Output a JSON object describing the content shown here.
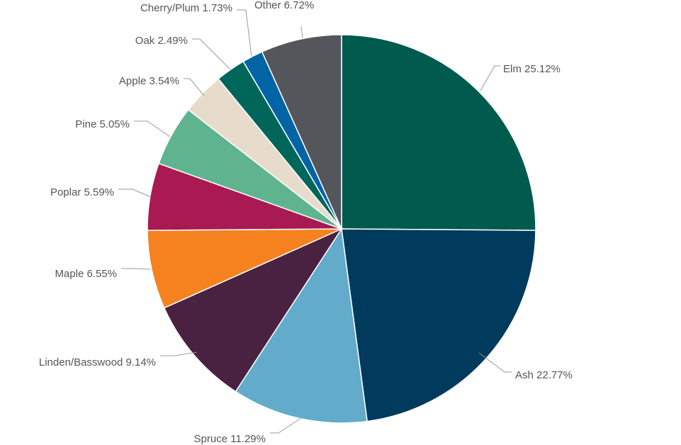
{
  "chart_data": {
    "type": "pie",
    "title": "",
    "slices": [
      {
        "label": "Elm",
        "value": 25.12,
        "display": "Elm 25.12%",
        "color": "#005a4e"
      },
      {
        "label": "Ash",
        "value": 22.77,
        "display": "Ash 22.77%",
        "color": "#003a5d"
      },
      {
        "label": "Spruce",
        "value": 11.29,
        "display": "Spruce 11.29%",
        "color": "#62abca"
      },
      {
        "label": "Linden/Basswood",
        "value": 9.14,
        "display": "Linden/Basswood 9.14%",
        "color": "#4a2241"
      },
      {
        "label": "Maple",
        "value": 6.55,
        "display": "Maple 6.55%",
        "color": "#f5821f"
      },
      {
        "label": "Poplar",
        "value": 5.59,
        "display": "Poplar 5.59%",
        "color": "#a91a52"
      },
      {
        "label": "Pine",
        "value": 5.05,
        "display": "Pine 5.05%",
        "color": "#5fb48f"
      },
      {
        "label": "Apple",
        "value": 3.54,
        "display": "Apple 3.54%",
        "color": "#e7dccb"
      },
      {
        "label": "Oak",
        "value": 2.49,
        "display": "Oak 2.49%",
        "color": "#00665a"
      },
      {
        "label": "Cherry/Plum",
        "value": 1.73,
        "display": "Cherry/Plum 1.73%",
        "color": "#0064a5"
      },
      {
        "label": "Other",
        "value": 6.72,
        "display": "Other 6.72%",
        "color": "#55565c"
      }
    ]
  }
}
